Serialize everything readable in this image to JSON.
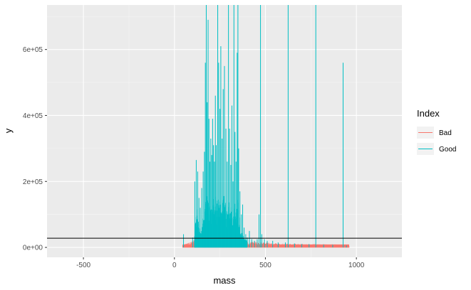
{
  "chart_data": {
    "type": "line",
    "subtype": "vertical-spectrum (ggplot2 geom_linerange style)",
    "title": "",
    "xlabel": "mass",
    "ylabel": "y",
    "xlim": [
      -700,
      1250
    ],
    "ylim": [
      -30000,
      735000
    ],
    "x_ticks": [
      -500,
      0,
      500,
      1000
    ],
    "x_tick_labels": [
      "-500",
      "0",
      "500",
      "1000"
    ],
    "y_ticks": [
      0,
      200000,
      400000,
      600000
    ],
    "y_tick_labels": [
      "0e+00",
      "2e+05",
      "4e+05",
      "6e+05"
    ],
    "grid": true,
    "hline": 28000,
    "legend": {
      "title": "Index",
      "placement": "right",
      "entries": [
        {
          "name": "Bad",
          "color": "#F8766D"
        },
        {
          "name": "Good",
          "color": "#00BFC4"
        }
      ]
    },
    "series": [
      {
        "name": "Bad",
        "color": "#F8766D",
        "x_range": [
          45,
          960
        ],
        "typical_y_max": 28000,
        "peaks": [
          {
            "x": 48,
            "y": 8000
          },
          {
            "x": 75,
            "y": 14000
          },
          {
            "x": 100,
            "y": 20000
          },
          {
            "x": 120,
            "y": 24000
          },
          {
            "x": 140,
            "y": 25000
          },
          {
            "x": 160,
            "y": 27000
          },
          {
            "x": 185,
            "y": 26000
          },
          {
            "x": 210,
            "y": 27500
          },
          {
            "x": 235,
            "y": 26000
          },
          {
            "x": 260,
            "y": 27000
          },
          {
            "x": 290,
            "y": 25500
          },
          {
            "x": 320,
            "y": 24000
          },
          {
            "x": 350,
            "y": 22000
          },
          {
            "x": 380,
            "y": 20000
          },
          {
            "x": 410,
            "y": 19000
          },
          {
            "x": 440,
            "y": 17000
          },
          {
            "x": 470,
            "y": 16000
          },
          {
            "x": 500,
            "y": 15000
          },
          {
            "x": 540,
            "y": 13000
          },
          {
            "x": 580,
            "y": 12000
          },
          {
            "x": 620,
            "y": 11500
          },
          {
            "x": 660,
            "y": 11000
          },
          {
            "x": 700,
            "y": 10500
          },
          {
            "x": 740,
            "y": 10000
          },
          {
            "x": 780,
            "y": 10000
          },
          {
            "x": 820,
            "y": 9500
          },
          {
            "x": 860,
            "y": 9500
          },
          {
            "x": 900,
            "y": 9000
          },
          {
            "x": 940,
            "y": 9000
          },
          {
            "x": 955,
            "y": 8500
          }
        ]
      },
      {
        "name": "Good",
        "color": "#00BFC4",
        "peaks": [
          {
            "x": 50,
            "y": 40000
          },
          {
            "x": 100,
            "y": 30000
          },
          {
            "x": 112,
            "y": 200000
          },
          {
            "x": 120,
            "y": 265000
          },
          {
            "x": 128,
            "y": 230000
          },
          {
            "x": 135,
            "y": 150000
          },
          {
            "x": 142,
            "y": 120000
          },
          {
            "x": 150,
            "y": 180000
          },
          {
            "x": 158,
            "y": 230000
          },
          {
            "x": 165,
            "y": 290000
          },
          {
            "x": 170,
            "y": 560000
          },
          {
            "x": 175,
            "y": 735000
          },
          {
            "x": 180,
            "y": 440000
          },
          {
            "x": 185,
            "y": 690000
          },
          {
            "x": 190,
            "y": 390000
          },
          {
            "x": 195,
            "y": 260000
          },
          {
            "x": 200,
            "y": 330000
          },
          {
            "x": 205,
            "y": 280000
          },
          {
            "x": 210,
            "y": 390000
          },
          {
            "x": 215,
            "y": 310000
          },
          {
            "x": 220,
            "y": 260000
          },
          {
            "x": 225,
            "y": 460000
          },
          {
            "x": 230,
            "y": 310000
          },
          {
            "x": 238,
            "y": 735000
          },
          {
            "x": 243,
            "y": 560000
          },
          {
            "x": 250,
            "y": 420000
          },
          {
            "x": 255,
            "y": 610000
          },
          {
            "x": 262,
            "y": 330000
          },
          {
            "x": 268,
            "y": 480000
          },
          {
            "x": 275,
            "y": 550000
          },
          {
            "x": 283,
            "y": 360000
          },
          {
            "x": 290,
            "y": 260000
          },
          {
            "x": 297,
            "y": 735000
          },
          {
            "x": 303,
            "y": 360000
          },
          {
            "x": 310,
            "y": 250000
          },
          {
            "x": 316,
            "y": 430000
          },
          {
            "x": 322,
            "y": 200000
          },
          {
            "x": 327,
            "y": 735000
          },
          {
            "x": 333,
            "y": 350000
          },
          {
            "x": 339,
            "y": 260000
          },
          {
            "x": 345,
            "y": 590000
          },
          {
            "x": 349,
            "y": 735000
          },
          {
            "x": 353,
            "y": 300000
          },
          {
            "x": 360,
            "y": 170000
          },
          {
            "x": 368,
            "y": 100000
          },
          {
            "x": 375,
            "y": 130000
          },
          {
            "x": 383,
            "y": 60000
          },
          {
            "x": 392,
            "y": 40000
          },
          {
            "x": 400,
            "y": 30000
          },
          {
            "x": 412,
            "y": 50000
          },
          {
            "x": 425,
            "y": 25000
          },
          {
            "x": 440,
            "y": 20000
          },
          {
            "x": 455,
            "y": 25000
          },
          {
            "x": 465,
            "y": 100000
          },
          {
            "x": 473,
            "y": 735000
          },
          {
            "x": 480,
            "y": 40000
          },
          {
            "x": 495,
            "y": 25000
          },
          {
            "x": 510,
            "y": 20000
          },
          {
            "x": 540,
            "y": 20000
          },
          {
            "x": 570,
            "y": 15000
          },
          {
            "x": 610,
            "y": 15000
          },
          {
            "x": 625,
            "y": 735000
          },
          {
            "x": 660,
            "y": 12000
          },
          {
            "x": 700,
            "y": 10000
          },
          {
            "x": 740,
            "y": 10000
          },
          {
            "x": 777,
            "y": 735000
          },
          {
            "x": 820,
            "y": 8000
          },
          {
            "x": 870,
            "y": 8000
          },
          {
            "x": 927,
            "y": 560000
          },
          {
            "x": 945,
            "y": 6000
          }
        ]
      }
    ]
  }
}
